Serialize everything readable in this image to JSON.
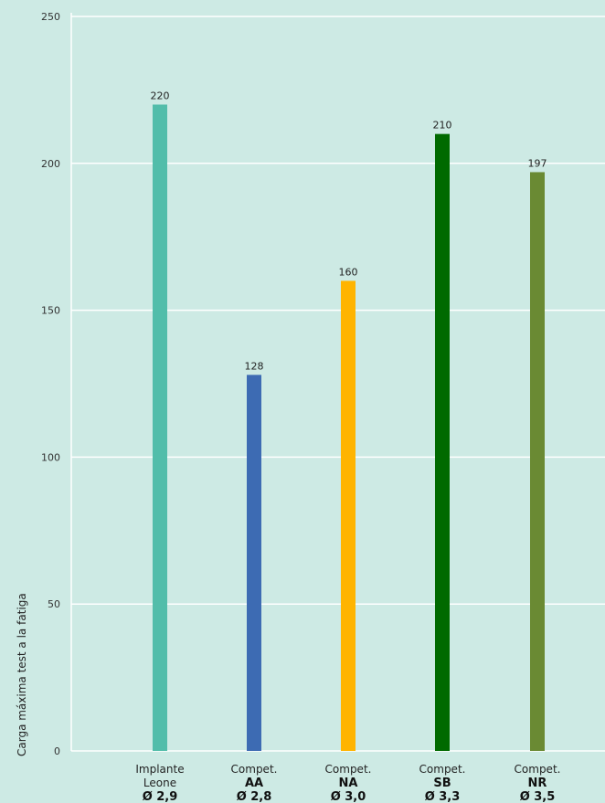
{
  "chart_data": {
    "type": "bar",
    "ylabel": "Carga máxima test a la fatiga",
    "xlabel": "",
    "ylim": [
      0,
      250
    ],
    "yticks": [
      0,
      50,
      100,
      150,
      200,
      250
    ],
    "grid": true,
    "categories": [
      {
        "line1": "Implante",
        "line2": "Leone",
        "line3": "Ø 2,9"
      },
      {
        "line1": "Compet.",
        "line2": "AA",
        "line3": "Ø 2,8"
      },
      {
        "line1": "Compet.",
        "line2": "NA",
        "line3": "Ø 3,0"
      },
      {
        "line1": "Compet.",
        "line2": "SB",
        "line3": "Ø 3,3"
      },
      {
        "line1": "Compet.",
        "line2": "NR",
        "line3": "Ø 3,5"
      }
    ],
    "values": [
      220,
      128,
      160,
      210,
      197
    ],
    "value_labels": [
      "220",
      "128",
      "160",
      "210",
      "197"
    ],
    "colors": [
      "#52bdaa",
      "#3d6bb3",
      "#ffb400",
      "#006a00",
      "#6a8a33"
    ],
    "bold_lines": [
      false,
      true,
      true
    ]
  },
  "style": {
    "background": "#cdeae4",
    "gridline_color": "#ffffff"
  }
}
